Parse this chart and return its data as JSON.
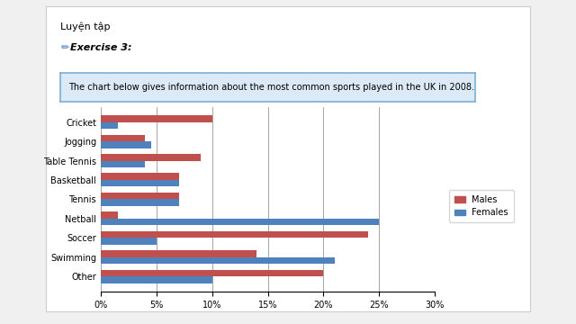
{
  "sports": [
    "Other",
    "Swimming",
    "Soccer",
    "Netball",
    "Tennis",
    "Basketball",
    "Table Tennis",
    "Jogging",
    "Cricket"
  ],
  "males": [
    20,
    14,
    24,
    1.5,
    7,
    7,
    9,
    4,
    10
  ],
  "females": [
    10,
    21,
    5,
    25,
    7,
    7,
    4,
    4.5,
    1.5
  ],
  "male_color": "#C0504D",
  "female_color": "#4F81BD",
  "xlabel_ticks": [
    0,
    5,
    10,
    15,
    20,
    25,
    30
  ],
  "xlabel_labels": [
    "0%",
    "5%",
    "10%",
    "15%",
    "20%",
    "25%",
    "30%"
  ],
  "xlim": [
    0,
    30
  ],
  "chart_title": "The chart below gives information about the most common sports played in the UK in 2008.",
  "header1": "Luyện tập",
  "header2": "Exercise 3:",
  "legend_males": "Males",
  "legend_females": "Females",
  "bar_height": 0.35,
  "page_bg": "#f0f0f0",
  "doc_bg": "#ffffff",
  "title_box_bg": "#dce9f7",
  "title_box_edge": "#7bafd4"
}
